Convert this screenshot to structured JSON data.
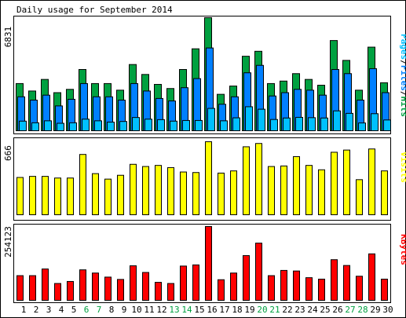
{
  "title": "Daily usage for September 2014",
  "colors": {
    "hits": "#00a040",
    "files": "#0080ff",
    "pages": "#00c0ff",
    "visits": "#ffff00",
    "kbytes": "#ff0000",
    "weekend": "#00a040",
    "weekday": "#000000"
  },
  "panels": {
    "usage": {
      "max_label": "6831",
      "legend": {
        "pages": "Pages",
        "files": "Files",
        "hits": "Hits",
        "sep": "/"
      }
    },
    "visits": {
      "max_label": "666",
      "legend": "Visits"
    },
    "kbytes": {
      "max_label": "254123",
      "legend": "KBytes"
    }
  },
  "chart_data": [
    {
      "type": "bar",
      "categories": [
        "1",
        "2",
        "3",
        "4",
        "5",
        "6",
        "7",
        "8",
        "9",
        "10",
        "11",
        "12",
        "13",
        "14",
        "15",
        "16",
        "17",
        "18",
        "19",
        "20",
        "21",
        "22",
        "23",
        "24",
        "25",
        "26",
        "27",
        "28",
        "29",
        "30"
      ],
      "weekend_days": [
        "6",
        "7",
        "13",
        "14",
        "20",
        "21",
        "27",
        "28"
      ],
      "ylim": [
        0,
        6831
      ],
      "series": [
        {
          "name": "Hits",
          "values": [
            2850,
            2400,
            3100,
            2300,
            2500,
            3700,
            2850,
            2850,
            2450,
            4000,
            3400,
            2800,
            2550,
            3700,
            4950,
            6831,
            2200,
            2700,
            4500,
            4800,
            2850,
            3000,
            3450,
            3100,
            2750,
            5450,
            4250,
            2450,
            5050,
            2900
          ]
        },
        {
          "name": "Files",
          "values": [
            2050,
            1850,
            2150,
            1500,
            1900,
            2850,
            2050,
            2050,
            1850,
            2850,
            2400,
            1950,
            1800,
            2600,
            3150,
            5000,
            1600,
            2050,
            3500,
            3950,
            2100,
            2300,
            2500,
            2450,
            2150,
            3700,
            3450,
            1850,
            3750,
            2300
          ]
        },
        {
          "name": "Pages",
          "values": [
            580,
            480,
            600,
            450,
            480,
            700,
            600,
            520,
            560,
            800,
            700,
            670,
            580,
            620,
            620,
            1350,
            600,
            780,
            1450,
            1300,
            680,
            770,
            810,
            790,
            770,
            1200,
            1050,
            470,
            1030,
            650
          ]
        }
      ]
    },
    {
      "type": "bar",
      "categories": [
        "1",
        "2",
        "3",
        "4",
        "5",
        "6",
        "7",
        "8",
        "9",
        "10",
        "11",
        "12",
        "13",
        "14",
        "15",
        "16",
        "17",
        "18",
        "19",
        "20",
        "21",
        "22",
        "23",
        "24",
        "25",
        "26",
        "27",
        "28",
        "29",
        "30"
      ],
      "ylim": [
        0,
        666
      ],
      "series": [
        {
          "name": "Visits",
          "values": [
            340,
            350,
            350,
            335,
            335,
            550,
            375,
            325,
            360,
            460,
            440,
            450,
            430,
            390,
            385,
            666,
            380,
            400,
            620,
            650,
            440,
            445,
            530,
            450,
            410,
            570,
            590,
            320,
            600,
            400
          ]
        }
      ]
    },
    {
      "type": "bar",
      "categories": [
        "1",
        "2",
        "3",
        "4",
        "5",
        "6",
        "7",
        "8",
        "9",
        "10",
        "11",
        "12",
        "13",
        "14",
        "15",
        "16",
        "17",
        "18",
        "19",
        "20",
        "21",
        "22",
        "23",
        "24",
        "25",
        "26",
        "27",
        "28",
        "29",
        "30"
      ],
      "ylim": [
        0,
        254123
      ],
      "series": [
        {
          "name": "KBytes",
          "values": [
            85000,
            85000,
            108000,
            58000,
            65000,
            105000,
            94000,
            80000,
            72000,
            119000,
            96000,
            62000,
            58000,
            118000,
            122000,
            254123,
            71000,
            94000,
            154000,
            197000,
            85000,
            103000,
            101000,
            78000,
            73000,
            140000,
            120000,
            83000,
            160000,
            73000
          ]
        }
      ]
    }
  ]
}
